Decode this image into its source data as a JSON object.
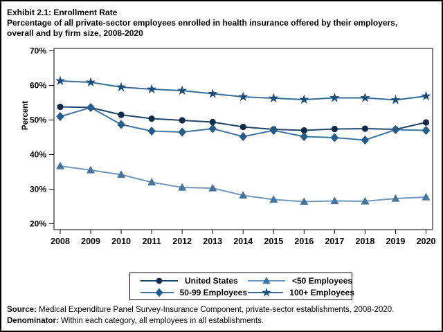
{
  "title": {
    "line1": "Exhibit 2.1: Enrollment Rate",
    "line2": "Percentage of all private-sector employees enrolled in health insurance offered by their employers, overall and by firm size, 2008-2020"
  },
  "chart_data": {
    "type": "line",
    "x": [
      2008,
      2009,
      2010,
      2011,
      2012,
      2013,
      2014,
      2015,
      2016,
      2017,
      2018,
      2019,
      2020
    ],
    "series": [
      {
        "name": "United States",
        "marker": "circle",
        "line_color": "#1f4466",
        "marker_color": "#0e2b49",
        "values": [
          53.8,
          53.6,
          51.5,
          50.4,
          49.9,
          49.4,
          48.0,
          47.3,
          47.0,
          47.4,
          47.5,
          47.3,
          49.3
        ]
      },
      {
        "name": "<50 Employees",
        "marker": "triangle",
        "line_color": "#7397b7",
        "marker_color": "#44759f",
        "values": [
          36.7,
          35.5,
          34.2,
          32.0,
          30.5,
          30.3,
          28.2,
          27.0,
          26.4,
          26.6,
          26.5,
          27.3,
          27.7
        ]
      },
      {
        "name": "50-99 Employees",
        "marker": "diamond",
        "line_color": "#3f73a1",
        "marker_color": "#255c8a",
        "values": [
          51.0,
          53.6,
          48.7,
          46.8,
          46.5,
          47.5,
          45.2,
          47.0,
          45.2,
          44.9,
          44.2,
          47.2,
          47.0
        ]
      },
      {
        "name": "100+ Employees",
        "marker": "star",
        "line_color": "#356a96",
        "marker_color": "#1c4d7a",
        "values": [
          61.3,
          60.9,
          59.5,
          58.9,
          58.5,
          57.6,
          56.7,
          56.3,
          55.9,
          56.4,
          56.4,
          55.8,
          56.9
        ]
      }
    ],
    "ylabel": "Percent",
    "ylim": [
      20,
      70
    ],
    "yticks": [
      20,
      30,
      40,
      50,
      60,
      70
    ],
    "ytick_suffix": "%",
    "grid": false,
    "legend_position": "bottom-boxed",
    "legend_row_major": [
      "United States",
      "<50 Employees",
      "50-99 Employees",
      "100+ Employees"
    ]
  },
  "footer": {
    "source_label": "Source:",
    "source_text": " Medical Expenditure Panel Survey-Insurance Component, private-sector establishments, 2008-2020.",
    "denominator_label": "Denominator:",
    "denominator_text": " Within each category, all employees in all establishments."
  }
}
